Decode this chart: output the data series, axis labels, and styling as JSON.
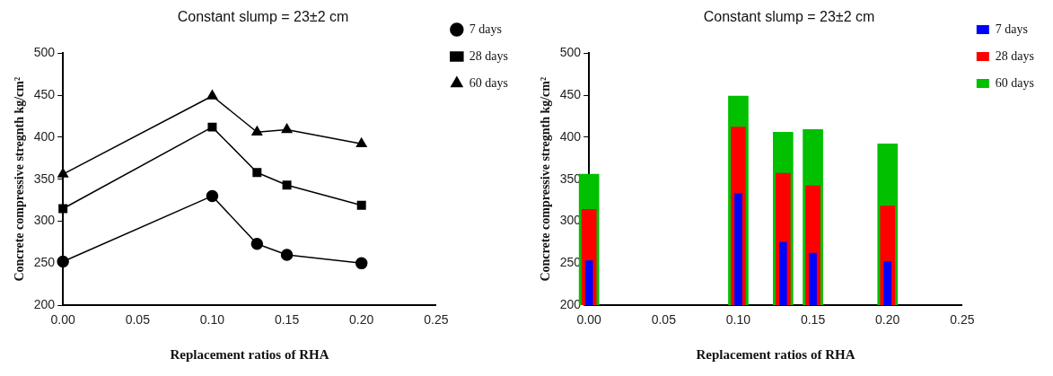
{
  "chart_data": [
    {
      "type": "line",
      "title": "Constant slump = 23±2 cm",
      "xlabel": "Replacement ratios of RHA",
      "ylabel": "Concrete compressive stregnth kg/cm²",
      "x": [
        0,
        0.1,
        0.13,
        0.15,
        0.2
      ],
      "xlim": [
        0,
        0.25
      ],
      "xticks": [
        {
          "value": 0,
          "label": "0.00"
        },
        {
          "value": 0.05,
          "label": "0.05"
        },
        {
          "value": 0.1,
          "label": "0.10"
        },
        {
          "value": 0.15,
          "label": "0.15"
        },
        {
          "value": 0.2,
          "label": "0.20"
        },
        {
          "value": 0.25,
          "label": "0.25"
        }
      ],
      "ylim": [
        200,
        500
      ],
      "yticks": [
        200,
        250,
        300,
        350,
        400,
        450,
        500
      ],
      "grid": false,
      "legend": "right",
      "line_style": "solid",
      "series": [
        {
          "name": "7 days",
          "color": "#000000",
          "marker": "circle",
          "values": [
            252,
            330,
            273,
            260,
            250
          ]
        },
        {
          "name": "28 days",
          "color": "#000000",
          "marker": "square",
          "values": [
            315,
            412,
            358,
            343,
            319
          ]
        },
        {
          "name": "60 days",
          "color": "#000000",
          "marker": "triangle",
          "values": [
            356,
            449,
            406,
            409,
            392
          ]
        }
      ]
    },
    {
      "type": "bar",
      "title": "Constant slump = 23±2 cm",
      "xlabel": "Replacement ratios of RHA",
      "ylabel": "Concrete compressive stregnth kg/cm²",
      "x": [
        0,
        0.1,
        0.13,
        0.15,
        0.2
      ],
      "xlim": [
        0,
        0.25
      ],
      "xticks": [
        {
          "value": 0,
          "label": "0.00"
        },
        {
          "value": 0.05,
          "label": "0.05"
        },
        {
          "value": 0.1,
          "label": "0.10"
        },
        {
          "value": 0.15,
          "label": "0.15"
        },
        {
          "value": 0.2,
          "label": "0.20"
        },
        {
          "value": 0.25,
          "label": "0.25"
        }
      ],
      "ylim": [
        200,
        500
      ],
      "yticks": [
        200,
        250,
        300,
        350,
        400,
        450,
        500
      ],
      "grid": false,
      "legend": "right",
      "series": [
        {
          "name": "7 days",
          "color": "#0000ff",
          "values": [
            253,
            333,
            275,
            262,
            252
          ]
        },
        {
          "name": "28 days",
          "color": "#ff0000",
          "values": [
            314,
            412,
            357,
            342,
            318
          ]
        },
        {
          "name": "60 days",
          "color": "#00c000",
          "values": [
            356,
            449,
            406,
            409,
            392
          ]
        }
      ]
    }
  ]
}
